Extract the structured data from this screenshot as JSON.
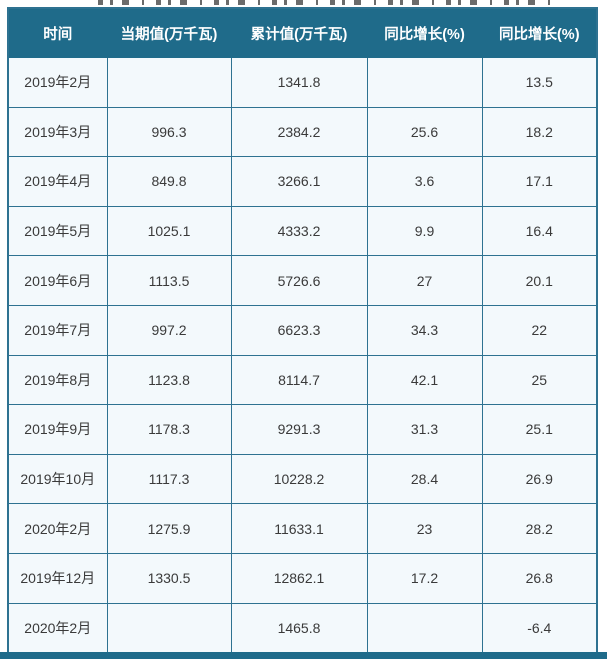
{
  "colors": {
    "header_bg": "#1f6b8a",
    "header_text": "#ffffff",
    "border": "#2e7291",
    "cell_bg": "#f3f9fc",
    "cell_text": "#3a3a3a"
  },
  "chart_data": {
    "type": "table",
    "columns": [
      "时间",
      "当期值(万千瓦)",
      "累计值(万千瓦)",
      "同比增长(%)",
      "同比增长(%)"
    ],
    "rows": [
      [
        "2019年2月",
        "",
        "1341.8",
        "",
        "13.5"
      ],
      [
        "2019年3月",
        "996.3",
        "2384.2",
        "25.6",
        "18.2"
      ],
      [
        "2019年4月",
        "849.8",
        "3266.1",
        "3.6",
        "17.1"
      ],
      [
        "2019年5月",
        "1025.1",
        "4333.2",
        "9.9",
        "16.4"
      ],
      [
        "2019年6月",
        "1113.5",
        "5726.6",
        "27",
        "20.1"
      ],
      [
        "2019年7月",
        "997.2",
        "6623.3",
        "34.3",
        "22"
      ],
      [
        "2019年8月",
        "1123.8",
        "8114.7",
        "42.1",
        "25"
      ],
      [
        "2019年9月",
        "1178.3",
        "9291.3",
        "31.3",
        "25.1"
      ],
      [
        "2019年10月",
        "1117.3",
        "10228.2",
        "28.4",
        "26.9"
      ],
      [
        "2020年2月",
        "1275.9",
        "11633.1",
        "23",
        "28.2"
      ],
      [
        "2019年12月",
        "1330.5",
        "12862.1",
        "17.2",
        "26.8"
      ],
      [
        "2020年2月",
        "",
        "1465.8",
        "",
        "-6.4"
      ]
    ]
  }
}
